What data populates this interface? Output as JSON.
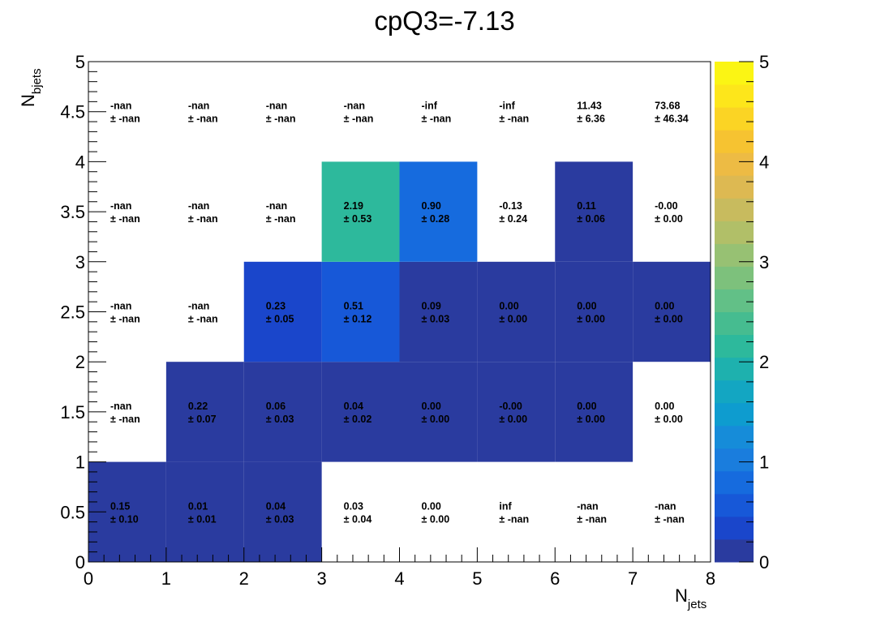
{
  "chart_data": {
    "type": "heatmap",
    "title": "cpQ3=-7.13",
    "xlabel": {
      "base": "N",
      "sub": "jets"
    },
    "ylabel": {
      "base": "N",
      "sub": "bjets"
    },
    "x_edges": [
      0,
      1,
      2,
      3,
      4,
      5,
      6,
      7,
      8
    ],
    "y_edges": [
      0,
      1,
      2,
      3,
      4,
      5
    ],
    "xlim": [
      0,
      8
    ],
    "ylim": [
      0,
      5
    ],
    "zlim": [
      0,
      5
    ],
    "x_ticks": [
      "0",
      "1",
      "2",
      "3",
      "4",
      "5",
      "6",
      "7",
      "8"
    ],
    "y_ticks": [
      "0",
      "0.5",
      "1",
      "1.5",
      "2",
      "2.5",
      "3",
      "3.5",
      "4",
      "4.5",
      "5"
    ],
    "z_ticks": [
      "0",
      "1",
      "2",
      "3",
      "4",
      "5"
    ],
    "colormap": "viridis-like",
    "cells": [
      {
        "ix": 0,
        "iy": 0,
        "z": 0.15,
        "filled": true,
        "value": "0.15",
        "error": "± 0.10"
      },
      {
        "ix": 1,
        "iy": 0,
        "z": 0.01,
        "filled": true,
        "value": "0.01",
        "error": "± 0.01"
      },
      {
        "ix": 2,
        "iy": 0,
        "z": 0.04,
        "filled": true,
        "value": "0.04",
        "error": "± 0.03"
      },
      {
        "ix": 3,
        "iy": 0,
        "z": null,
        "filled": false,
        "value": "0.03",
        "error": "± 0.04"
      },
      {
        "ix": 4,
        "iy": 0,
        "z": null,
        "filled": false,
        "value": "0.00",
        "error": "± 0.00"
      },
      {
        "ix": 5,
        "iy": 0,
        "z": null,
        "filled": false,
        "value": "inf",
        "error": "± -nan"
      },
      {
        "ix": 6,
        "iy": 0,
        "z": null,
        "filled": false,
        "value": "-nan",
        "error": "± -nan"
      },
      {
        "ix": 7,
        "iy": 0,
        "z": null,
        "filled": false,
        "value": "-nan",
        "error": "± -nan"
      },
      {
        "ix": 0,
        "iy": 1,
        "z": null,
        "filled": false,
        "value": "-nan",
        "error": "± -nan"
      },
      {
        "ix": 1,
        "iy": 1,
        "z": 0.22,
        "filled": true,
        "value": "0.22",
        "error": "± 0.07"
      },
      {
        "ix": 2,
        "iy": 1,
        "z": 0.06,
        "filled": true,
        "value": "0.06",
        "error": "± 0.03"
      },
      {
        "ix": 3,
        "iy": 1,
        "z": 0.04,
        "filled": true,
        "value": "0.04",
        "error": "± 0.02"
      },
      {
        "ix": 4,
        "iy": 1,
        "z": 0.0,
        "filled": true,
        "value": "0.00",
        "error": "± 0.00"
      },
      {
        "ix": 5,
        "iy": 1,
        "z": 0.0,
        "filled": true,
        "value": "-0.00",
        "error": "± 0.00"
      },
      {
        "ix": 6,
        "iy": 1,
        "z": 0.0,
        "filled": true,
        "value": "0.00",
        "error": "± 0.00"
      },
      {
        "ix": 7,
        "iy": 1,
        "z": null,
        "filled": false,
        "value": "0.00",
        "error": "± 0.00"
      },
      {
        "ix": 0,
        "iy": 2,
        "z": null,
        "filled": false,
        "value": "-nan",
        "error": "± -nan"
      },
      {
        "ix": 1,
        "iy": 2,
        "z": null,
        "filled": false,
        "value": "-nan",
        "error": "± -nan"
      },
      {
        "ix": 2,
        "iy": 2,
        "z": 0.23,
        "filled": true,
        "value": "0.23",
        "error": "± 0.05"
      },
      {
        "ix": 3,
        "iy": 2,
        "z": 0.51,
        "filled": true,
        "value": "0.51",
        "error": "± 0.12"
      },
      {
        "ix": 4,
        "iy": 2,
        "z": 0.09,
        "filled": true,
        "value": "0.09",
        "error": "± 0.03"
      },
      {
        "ix": 5,
        "iy": 2,
        "z": 0.0,
        "filled": true,
        "value": "0.00",
        "error": "± 0.00"
      },
      {
        "ix": 6,
        "iy": 2,
        "z": 0.0,
        "filled": true,
        "value": "0.00",
        "error": "± 0.00"
      },
      {
        "ix": 7,
        "iy": 2,
        "z": 0.0,
        "filled": true,
        "value": "0.00",
        "error": "± 0.00"
      },
      {
        "ix": 0,
        "iy": 3,
        "z": null,
        "filled": false,
        "value": "-nan",
        "error": "± -nan"
      },
      {
        "ix": 1,
        "iy": 3,
        "z": null,
        "filled": false,
        "value": "-nan",
        "error": "± -nan"
      },
      {
        "ix": 2,
        "iy": 3,
        "z": null,
        "filled": false,
        "value": "-nan",
        "error": "± -nan"
      },
      {
        "ix": 3,
        "iy": 3,
        "z": 2.19,
        "filled": true,
        "value": "2.19",
        "error": "± 0.53"
      },
      {
        "ix": 4,
        "iy": 3,
        "z": 0.9,
        "filled": true,
        "value": "0.90",
        "error": "± 0.28"
      },
      {
        "ix": 5,
        "iy": 3,
        "z": null,
        "filled": false,
        "value": "-0.13",
        "error": "± 0.24"
      },
      {
        "ix": 6,
        "iy": 3,
        "z": 0.11,
        "filled": true,
        "value": "0.11",
        "error": "± 0.06"
      },
      {
        "ix": 7,
        "iy": 3,
        "z": null,
        "filled": false,
        "value": "-0.00",
        "error": "± 0.00"
      },
      {
        "ix": 0,
        "iy": 4,
        "z": null,
        "filled": false,
        "value": "-nan",
        "error": "± -nan"
      },
      {
        "ix": 1,
        "iy": 4,
        "z": null,
        "filled": false,
        "value": "-nan",
        "error": "± -nan"
      },
      {
        "ix": 2,
        "iy": 4,
        "z": null,
        "filled": false,
        "value": "-nan",
        "error": "± -nan"
      },
      {
        "ix": 3,
        "iy": 4,
        "z": null,
        "filled": false,
        "value": "-nan",
        "error": "± -nan"
      },
      {
        "ix": 4,
        "iy": 4,
        "z": null,
        "filled": false,
        "value": "-inf",
        "error": "± -nan"
      },
      {
        "ix": 5,
        "iy": 4,
        "z": null,
        "filled": false,
        "value": "-inf",
        "error": "± -nan"
      },
      {
        "ix": 6,
        "iy": 4,
        "z": null,
        "filled": false,
        "value": "11.43",
        "error": "± 6.36"
      },
      {
        "ix": 7,
        "iy": 4,
        "z": null,
        "filled": false,
        "value": "73.68",
        "error": "± 46.34"
      }
    ],
    "palette": [
      "#2a3b9f",
      "#1a46cb",
      "#1758d8",
      "#166bde",
      "#1a7ddd",
      "#168cd9",
      "#0e9ccf",
      "#13a6c2",
      "#1eb1ae",
      "#2db99c",
      "#46bc90",
      "#62c087",
      "#7dc17c",
      "#97c173",
      "#b1bf68",
      "#c8bb5e",
      "#ddb952",
      "#edbb44",
      "#f6c331",
      "#fbd424",
      "#fde61b",
      "#fbf514"
    ]
  }
}
